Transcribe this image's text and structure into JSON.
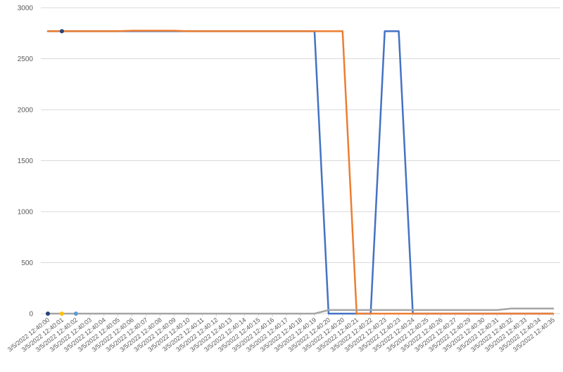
{
  "chart_data": {
    "type": "line",
    "title": "",
    "xlabel": "",
    "ylabel": "",
    "ylim": [
      0,
      3000
    ],
    "yticks": [
      0,
      500,
      1000,
      1500,
      2000,
      2500,
      3000
    ],
    "grid": "horizontal",
    "legend": "none",
    "categories": [
      "3/5/2022 12:40:00",
      "3/5/2022 12:40:01",
      "3/5/2022 12:40:02",
      "3/5/2022 12:40:03",
      "3/5/2022 12:40:04",
      "3/5/2022 12:40:05",
      "3/5/2022 12:40:06",
      "3/5/2022 12:40:07",
      "3/5/2022 12:40:08",
      "3/5/2022 12:40:09",
      "3/5/2022 12:40:10",
      "3/5/2022 12:40:11",
      "3/5/2022 12:40:12",
      "3/5/2022 12:40:13",
      "3/5/2022 12:40:14",
      "3/5/2022 12:40:15",
      "3/5/2022 12:40:16",
      "3/5/2022 12:40:17",
      "3/5/2022 12:40:18",
      "3/5/2022 12:40:19",
      "3/5/2022 12:40:20",
      "3/5/2022 12:40:20",
      "3/5/2022 12:40:21",
      "3/5/2022 12:40:22",
      "3/5/2022 12:40:23",
      "3/5/2022 12:40:23",
      "3/5/2022 12:40:24",
      "3/5/2022 12:40:25",
      "3/5/2022 12:40:26",
      "3/5/2022 12:40:27",
      "3/5/2022 12:40:29",
      "3/5/2022 12:40:30",
      "3/5/2022 12:40:31",
      "3/5/2022 12:40:32",
      "3/5/2022 12:40:33",
      "3/5/2022 12:40:34",
      "3/5/2022 12:40:35"
    ],
    "series": [
      {
        "color": "#4472c4",
        "values": [
          2770,
          2770,
          2770,
          2770,
          2770,
          2770,
          2770,
          2770,
          2770,
          2770,
          2770,
          2770,
          2770,
          2770,
          2770,
          2770,
          2770,
          2770,
          2770,
          2770,
          0,
          0,
          0,
          0,
          2770,
          2770,
          0,
          0,
          0,
          0,
          0,
          0,
          0,
          0,
          0,
          0,
          0
        ]
      },
      {
        "color": "#ed7d31",
        "values": [
          2770,
          2770,
          2770,
          2770,
          2770,
          2770,
          2775,
          2775,
          2775,
          2775,
          2770,
          2770,
          2770,
          2770,
          2770,
          2770,
          2770,
          2770,
          2770,
          2770,
          2770,
          2770,
          0,
          0,
          0,
          0,
          0,
          0,
          0,
          0,
          0,
          0,
          0,
          0,
          0,
          0,
          0
        ]
      },
      {
        "color": "#a5a5a5",
        "values": [
          0,
          0,
          0,
          0,
          0,
          0,
          0,
          0,
          0,
          0,
          0,
          0,
          0,
          0,
          0,
          0,
          0,
          0,
          0,
          0,
          35,
          35,
          35,
          35,
          35,
          35,
          35,
          35,
          35,
          35,
          35,
          35,
          35,
          50,
          50,
          50,
          50
        ]
      }
    ],
    "markers": [
      {
        "index": 0,
        "value": 0,
        "color": "#264478"
      },
      {
        "index": 1,
        "value": 0,
        "color": "#ffc000"
      },
      {
        "index": 2,
        "value": 0,
        "color": "#5b9bd5"
      },
      {
        "index": 1,
        "value": 2770,
        "color": "#264478"
      }
    ]
  }
}
